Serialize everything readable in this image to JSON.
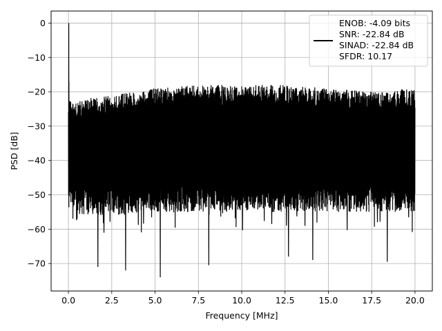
{
  "chart_data": {
    "type": "line",
    "title": "",
    "xlabel": "Frequency [MHz]",
    "ylabel": "PSD [dB]",
    "xlim": [
      -1.0,
      21.0
    ],
    "ylim": [
      -78,
      3.5
    ],
    "xticks": [
      0.0,
      2.5,
      5.0,
      7.5,
      10.0,
      12.5,
      15.0,
      17.5,
      20.0
    ],
    "xtick_labels": [
      "0.0",
      "2.5",
      "5.0",
      "7.5",
      "10.0",
      "12.5",
      "15.0",
      "17.5",
      "20.0"
    ],
    "yticks": [
      0,
      -10,
      -20,
      -30,
      -40,
      -50,
      -60,
      -70
    ],
    "ytick_labels": [
      "0",
      "−10",
      "−20",
      "−30",
      "−40",
      "−50",
      "−60",
      "−70"
    ],
    "grid": true,
    "legend_position": "top-right",
    "legend_lines": [
      "ENOB: -4.09 bits",
      "SNR: -22.84 dB",
      "SINAD: -22.84 dB",
      "SFDR: 10.17"
    ],
    "series_color": "#000000",
    "x_range": [
      0.0,
      20.0
    ],
    "peak": {
      "x": 0.02,
      "y": 0
    },
    "envelope": {
      "x": [
        0.0,
        1.0,
        2.5,
        5.0,
        7.5,
        10.0,
        12.5,
        15.0,
        17.5,
        20.0
      ],
      "upper": [
        -22,
        -22,
        -21,
        -19,
        -18,
        -18,
        -18,
        -19,
        -20,
        -19
      ],
      "lower": [
        -55,
        -56,
        -56,
        -55,
        -55,
        -55,
        -55,
        -55,
        -55,
        -55
      ]
    },
    "deep_dips": [
      {
        "x": 1.7,
        "y": -71
      },
      {
        "x": 3.3,
        "y": -72
      },
      {
        "x": 5.3,
        "y": -74
      },
      {
        "x": 8.1,
        "y": -70.5
      },
      {
        "x": 12.7,
        "y": -68
      },
      {
        "x": 14.1,
        "y": -69
      },
      {
        "x": 18.4,
        "y": -69.5
      }
    ]
  }
}
